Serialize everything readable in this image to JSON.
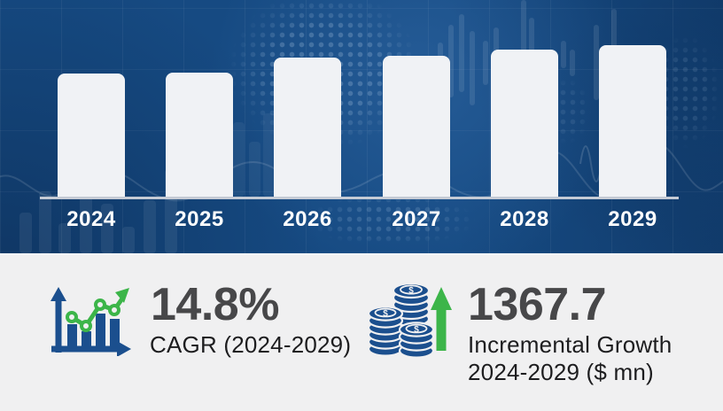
{
  "chart_data": {
    "type": "bar",
    "title": "",
    "categories": [
      "2024",
      "2025",
      "2026",
      "2027",
      "2028",
      "2029"
    ],
    "values": [
      0.81,
      0.82,
      0.92,
      0.93,
      0.97,
      1.0
    ],
    "value_scale": "relative bar height (no y-axis labels shown)",
    "xlabel": "",
    "ylabel": "",
    "ylim": [
      0,
      1
    ],
    "grid": false,
    "legend": false,
    "bar_color": "#f0f2f5",
    "axis_color": "#c5cbd5",
    "label_color": "#ffffff",
    "background_color": "#164a82"
  },
  "stats": {
    "cagr": {
      "value": "14.8%",
      "label": "CAGR (2024-2029)",
      "icon": "growth-chart-icon"
    },
    "incremental_growth": {
      "value": "1367.7",
      "label_line1": "Incremental Growth",
      "label_line2": "2024-2029 ($ mn)",
      "icon": "coins-stack-icon"
    }
  },
  "colors": {
    "hero_blue": "#164a82",
    "stats_background": "#f0f0f1",
    "number_text": "#474749",
    "label_text": "#1d1d1f",
    "icon_blue": "#1b4f8e",
    "accent_green": "#3cb549"
  }
}
